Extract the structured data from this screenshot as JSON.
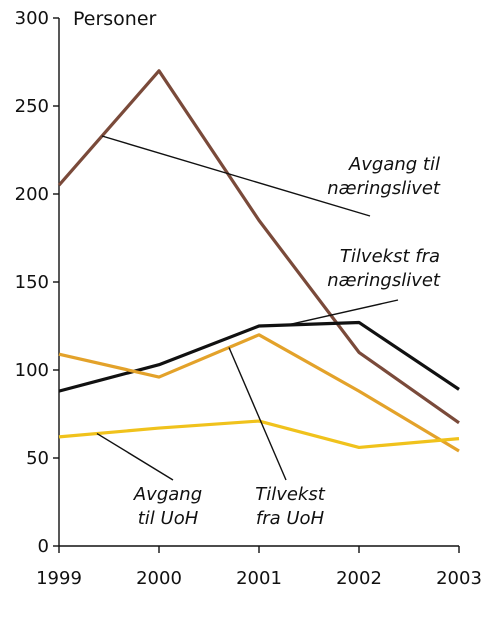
{
  "chart_data": {
    "type": "line",
    "title": "",
    "xlabel": "",
    "ylabel": "Personer",
    "x": [
      "1999",
      "2000",
      "2001",
      "2002",
      "2003"
    ],
    "ylim": [
      0,
      300
    ],
    "yticks": [
      "0",
      "50",
      "100",
      "150",
      "200",
      "250",
      "300"
    ],
    "grid": false,
    "legend": "none",
    "series": [
      {
        "name": "Avgang til næringslivet",
        "values": [
          205,
          270,
          185,
          110,
          70
        ],
        "color": "#7a4a3a",
        "annotation_lines": [
          "Avgang til",
          "næringslivet"
        ]
      },
      {
        "name": "Tilvekst fra næringslivet",
        "values": [
          88,
          103,
          125,
          127,
          89
        ],
        "color": "#111111",
        "annotation_lines": [
          "Tilvekst fra",
          "næringslivet"
        ]
      },
      {
        "name": "Tilvekst fra UoH",
        "values": [
          109,
          96,
          120,
          88,
          54
        ],
        "color": "#e3a22a",
        "annotation_lines": [
          "Tilvekst",
          "fra UoH"
        ]
      },
      {
        "name": "Avgang til UoH",
        "values": [
          62,
          67,
          71,
          56,
          61
        ],
        "color": "#f0c21c",
        "annotation_lines": [
          "Avgang",
          "til UoH"
        ]
      }
    ]
  }
}
